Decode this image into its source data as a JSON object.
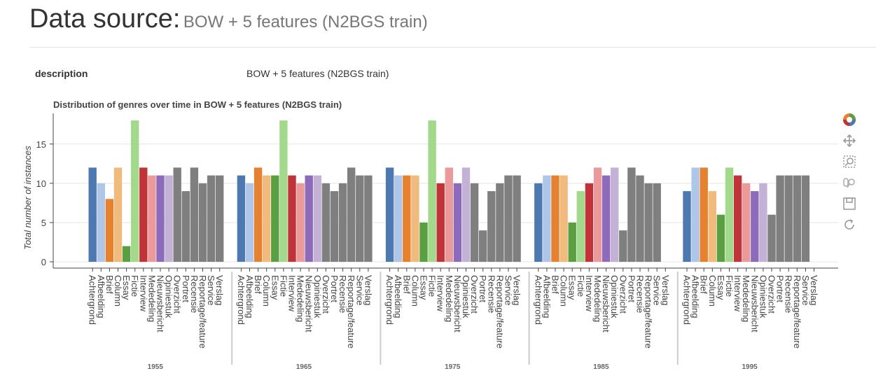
{
  "header": {
    "title": "Data source:",
    "subtitle": "BOW + 5 features (N2BGS train)"
  },
  "description": {
    "key": "description",
    "value": "BOW + 5 features (N2BGS train)"
  },
  "toolbar": {
    "items": [
      {
        "name": "bokeh-logo-icon",
        "icon": "bokeh-logo"
      },
      {
        "name": "pan-tool-icon",
        "icon": "pan"
      },
      {
        "name": "box-zoom-tool-icon",
        "icon": "box-zoom"
      },
      {
        "name": "wheel-zoom-tool-icon",
        "icon": "wheel-zoom"
      },
      {
        "name": "save-tool-icon",
        "icon": "save"
      },
      {
        "name": "reset-tool-icon",
        "icon": "reset"
      }
    ]
  },
  "chart_data": {
    "type": "bar",
    "title": "Distribution of genres over time in BOW + 5 features (N2BGS train)",
    "ylabel": "Total number of instances",
    "xlabel": "",
    "ylim": [
      -0.8,
      18.9
    ],
    "yticks": [
      0,
      5,
      10,
      15
    ],
    "grid": true,
    "legend": "none",
    "categories": [
      "Achtergrond",
      "Afbeelding",
      "Brief",
      "Column",
      "Essay",
      "Fictie",
      "Interview",
      "Mededeling",
      "Nieuwsbericht",
      "Opiniestuk",
      "Overzicht",
      "Portret",
      "Recensie",
      "Reportage/feature",
      "Service",
      "Verslag"
    ],
    "colors": [
      "#4e79b0",
      "#aec7e8",
      "#e5812f",
      "#f2bb7e",
      "#5aa043",
      "#a3d98a",
      "#c03338",
      "#ea9a9a",
      "#8c6bba",
      "#c3b1d6",
      "#7f7f7f",
      "#7f7f7f",
      "#7f7f7f",
      "#7f7f7f",
      "#7f7f7f",
      "#7f7f7f"
    ],
    "groups": [
      {
        "label": "1955",
        "values": [
          12,
          10,
          8,
          12,
          2,
          18,
          12,
          11,
          11,
          11,
          12,
          9,
          12,
          10,
          11,
          11
        ]
      },
      {
        "label": "1965",
        "values": [
          11,
          10,
          12,
          11,
          11,
          18,
          11,
          10,
          11,
          11,
          10,
          9,
          10,
          12,
          11,
          11
        ]
      },
      {
        "label": "1975",
        "values": [
          12,
          11,
          11,
          11,
          5,
          18,
          10,
          12,
          10,
          12,
          10,
          4,
          9,
          10,
          11,
          11
        ]
      },
      {
        "label": "1985",
        "values": [
          10,
          11,
          11,
          11,
          5,
          9,
          10,
          12,
          11,
          12,
          4,
          12,
          11,
          10,
          10,
          0
        ]
      },
      {
        "label": "1995",
        "values": [
          9,
          12,
          12,
          9,
          6,
          12,
          11,
          10,
          9,
          10,
          6,
          11,
          11,
          11,
          11,
          0
        ]
      }
    ]
  }
}
